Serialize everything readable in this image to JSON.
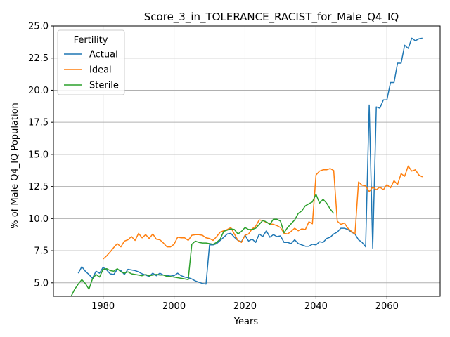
{
  "chart_data": {
    "type": "line",
    "title": "Score_3_in_TOLERANCE_RACIST_for_Male_Q4_IQ",
    "xlabel": "Years",
    "ylabel": "% of Male Q4_IQ Population",
    "xlim": [
      1966,
      2075
    ],
    "ylim": [
      3.95,
      25.0
    ],
    "xticks": [
      1980,
      2000,
      2020,
      2040,
      2060
    ],
    "yticks": [
      5.0,
      7.5,
      10.0,
      12.5,
      15.0,
      17.5,
      20.0,
      22.5,
      25.0
    ],
    "ytick_labels": [
      "5.0",
      "7.5",
      "10.0",
      "12.5",
      "15.0",
      "17.5",
      "20.0",
      "22.5",
      "25.0"
    ],
    "grid": true,
    "legend": {
      "title": "Fertility",
      "placement": "top-left"
    },
    "series": [
      {
        "name": "Actual",
        "color": "#1f77b4",
        "x": [
          1973,
          1974,
          1975,
          1976,
          1977,
          1978,
          1979,
          1980,
          1981,
          1982,
          1983,
          1984,
          1985,
          1986,
          1987,
          1988,
          1989,
          1990,
          1991,
          1992,
          1993,
          1994,
          1995,
          1996,
          1997,
          1998,
          1999,
          2000,
          2001,
          2002,
          2003,
          2004,
          2005,
          2006,
          2007,
          2008,
          2009,
          2010,
          2011,
          2012,
          2013,
          2014,
          2015,
          2016,
          2017,
          2018,
          2019,
          2020,
          2021,
          2022,
          2023,
          2024,
          2025,
          2026,
          2027,
          2028,
          2029,
          2030,
          2031,
          2032,
          2033,
          2034,
          2035,
          2036,
          2037,
          2038,
          2039,
          2040,
          2041,
          2042,
          2043,
          2044,
          2045,
          2046,
          2047,
          2048,
          2049,
          2050,
          2051,
          2052,
          2053,
          2054,
          2055,
          2056,
          2057,
          2058,
          2059,
          2060,
          2061,
          2062,
          2063,
          2064,
          2065,
          2066,
          2067,
          2068,
          2069,
          2070
        ],
        "values": [
          5.75,
          6.25,
          5.9,
          5.65,
          5.35,
          5.9,
          5.75,
          6.2,
          6.0,
          5.7,
          5.65,
          6.05,
          5.95,
          5.65,
          6.05,
          6.0,
          5.95,
          5.85,
          5.7,
          5.6,
          5.5,
          5.75,
          5.55,
          5.75,
          5.6,
          5.55,
          5.6,
          5.55,
          5.75,
          5.55,
          5.45,
          5.4,
          5.3,
          5.15,
          5.05,
          4.95,
          4.9,
          7.95,
          7.95,
          8.05,
          8.3,
          8.55,
          8.8,
          8.85,
          8.55,
          8.3,
          8.2,
          8.7,
          8.25,
          8.4,
          8.15,
          8.8,
          8.6,
          9.05,
          8.55,
          8.75,
          8.6,
          8.65,
          8.15,
          8.15,
          8.05,
          8.35,
          8.05,
          7.95,
          7.85,
          7.85,
          8.0,
          7.95,
          8.2,
          8.15,
          8.45,
          8.55,
          8.8,
          8.95,
          9.25,
          9.25,
          9.15,
          8.95,
          8.8,
          8.35,
          8.15,
          7.8,
          18.85,
          7.7,
          18.7,
          18.6,
          19.25,
          19.25,
          20.6,
          20.6,
          22.1,
          22.1,
          23.5,
          23.25,
          24.05,
          23.85,
          24.0,
          24.05
        ]
      },
      {
        "name": "Ideal",
        "color": "#ff7f0e",
        "x": [
          1980,
          1981,
          1982,
          1983,
          1984,
          1985,
          1986,
          1987,
          1988,
          1989,
          1990,
          1991,
          1992,
          1993,
          1994,
          1995,
          1996,
          1997,
          1998,
          1999,
          2000,
          2001,
          2002,
          2003,
          2004,
          2005,
          2006,
          2007,
          2008,
          2009,
          2010,
          2011,
          2012,
          2013,
          2014,
          2015,
          2016,
          2017,
          2018,
          2019,
          2020,
          2021,
          2022,
          2023,
          2024,
          2025,
          2026,
          2027,
          2028,
          2029,
          2030,
          2031,
          2032,
          2033,
          2034,
          2035,
          2036,
          2037,
          2038,
          2039,
          2040,
          2041,
          2042,
          2043,
          2044,
          2045,
          2046,
          2047,
          2048,
          2049,
          2050,
          2051,
          2052,
          2053,
          2054,
          2055,
          2056,
          2057,
          2058,
          2059,
          2060,
          2061,
          2062,
          2063,
          2064,
          2065,
          2066,
          2067,
          2068,
          2069,
          2070
        ],
        "values": [
          6.85,
          7.1,
          7.4,
          7.75,
          8.05,
          7.8,
          8.25,
          8.35,
          8.6,
          8.3,
          8.85,
          8.5,
          8.75,
          8.45,
          8.8,
          8.4,
          8.35,
          8.1,
          7.8,
          7.8,
          8.0,
          8.55,
          8.5,
          8.5,
          8.3,
          8.7,
          8.75,
          8.75,
          8.7,
          8.5,
          8.45,
          8.3,
          8.6,
          8.95,
          9.05,
          9.15,
          9.3,
          8.8,
          8.3,
          8.15,
          8.7,
          8.8,
          9.2,
          9.4,
          9.9,
          9.85,
          9.7,
          9.6,
          9.55,
          9.45,
          9.3,
          8.85,
          8.8,
          9.0,
          9.25,
          9.05,
          9.2,
          9.15,
          9.75,
          9.6,
          13.4,
          13.7,
          13.8,
          13.8,
          13.9,
          13.75,
          9.8,
          9.55,
          9.65,
          9.25,
          9.0,
          8.8,
          12.85,
          12.6,
          12.55,
          12.1,
          12.45,
          12.25,
          12.45,
          12.25,
          12.65,
          12.4,
          12.95,
          12.65,
          13.5,
          13.3,
          14.1,
          13.7,
          13.8,
          13.4,
          13.25
        ]
      },
      {
        "name": "Sterile",
        "color": "#2ca02c",
        "x": [
          1971,
          1972,
          1973,
          1974,
          1975,
          1976,
          1977,
          1978,
          1979,
          1980,
          1981,
          1982,
          1983,
          1984,
          1985,
          1986,
          1987,
          1988,
          1989,
          1990,
          1991,
          1992,
          1993,
          1994,
          1995,
          1996,
          1997,
          1998,
          1999,
          2000,
          2001,
          2002,
          2003,
          2004,
          2005,
          2006,
          2007,
          2008,
          2009,
          2010,
          2011,
          2012,
          2013,
          2014,
          2015,
          2016,
          2017,
          2018,
          2019,
          2020,
          2021,
          2022,
          2023,
          2024,
          2025,
          2026,
          2027,
          2028,
          2029,
          2030,
          2031,
          2032,
          2033,
          2034,
          2035,
          2036,
          2037,
          2038,
          2039,
          2040,
          2041,
          2042,
          2043,
          2044,
          2045
        ],
        "values": [
          3.95,
          4.5,
          4.9,
          5.25,
          4.95,
          4.5,
          5.3,
          5.65,
          5.45,
          6.05,
          6.1,
          5.95,
          5.9,
          6.1,
          5.85,
          5.75,
          5.85,
          5.7,
          5.65,
          5.6,
          5.55,
          5.65,
          5.55,
          5.6,
          5.65,
          5.6,
          5.6,
          5.5,
          5.5,
          5.45,
          5.4,
          5.35,
          5.3,
          5.25,
          8.0,
          8.25,
          8.15,
          8.1,
          8.1,
          8.05,
          8.0,
          8.15,
          8.4,
          9.0,
          9.1,
          9.2,
          9.15,
          8.8,
          9.0,
          9.3,
          9.15,
          9.15,
          9.25,
          9.55,
          9.85,
          9.75,
          9.55,
          9.95,
          9.95,
          9.8,
          8.9,
          9.3,
          9.6,
          9.9,
          10.4,
          10.6,
          11.0,
          11.15,
          11.3,
          11.9,
          11.2,
          11.5,
          11.2,
          10.75,
          10.4
        ]
      }
    ]
  }
}
